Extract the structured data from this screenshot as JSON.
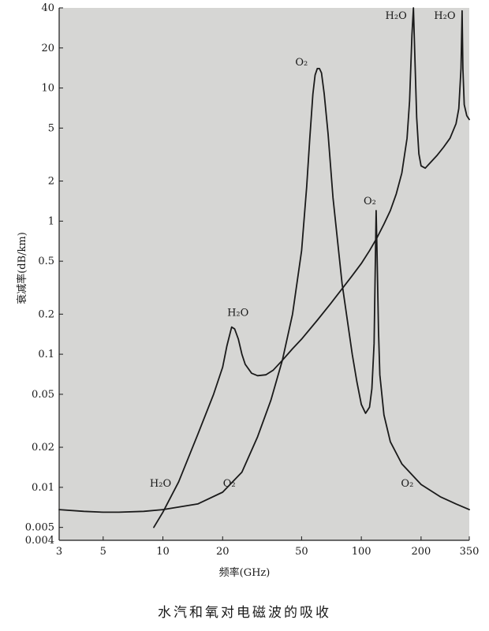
{
  "caption": "水汽和氧对电磁波的吸收",
  "chart_data": {
    "type": "line",
    "title": "",
    "xlabel": "频率(GHz)",
    "ylabel": "衰减率(dB/km)",
    "xscale": "log",
    "yscale": "log",
    "xlim": [
      3,
      350
    ],
    "ylim": [
      0.004,
      40
    ],
    "grid": false,
    "xticks": [
      {
        "value": 3,
        "label": "3"
      },
      {
        "value": 5,
        "label": "5"
      },
      {
        "value": 10,
        "label": "10"
      },
      {
        "value": 20,
        "label": "20"
      },
      {
        "value": 50,
        "label": "50"
      },
      {
        "value": 100,
        "label": "100"
      },
      {
        "value": 200,
        "label": "200"
      },
      {
        "value": 350,
        "label": "350"
      }
    ],
    "yticks": [
      {
        "value": 0.004,
        "label": "0.004"
      },
      {
        "value": 0.005,
        "label": "0.005"
      },
      {
        "value": 0.01,
        "label": "0.01"
      },
      {
        "value": 0.02,
        "label": "0.02"
      },
      {
        "value": 0.05,
        "label": "0.05"
      },
      {
        "value": 0.1,
        "label": "0.1"
      },
      {
        "value": 0.2,
        "label": "0.2"
      },
      {
        "value": 0.5,
        "label": "0.5"
      },
      {
        "value": 1,
        "label": "1"
      },
      {
        "value": 2,
        "label": "2"
      },
      {
        "value": 5,
        "label": "5"
      },
      {
        "value": 10,
        "label": "10"
      },
      {
        "value": 20,
        "label": "20"
      },
      {
        "value": 40,
        "label": "40"
      }
    ],
    "series": [
      {
        "name": "H2O",
        "x": [
          9,
          10,
          12,
          15,
          18,
          20,
          21,
          22.2,
          23,
          24,
          25,
          26,
          28,
          30,
          33,
          36,
          40,
          45,
          50,
          60,
          70,
          80,
          90,
          100,
          110,
          120,
          130,
          140,
          150,
          160,
          170,
          175,
          180,
          183,
          186,
          190,
          195,
          200,
          210,
          220,
          240,
          260,
          280,
          300,
          310,
          318,
          322,
          325,
          330,
          340,
          350
        ],
        "y": [
          0.005,
          0.0065,
          0.011,
          0.025,
          0.05,
          0.08,
          0.115,
          0.16,
          0.155,
          0.13,
          0.1,
          0.084,
          0.072,
          0.069,
          0.07,
          0.076,
          0.09,
          0.11,
          0.13,
          0.18,
          0.24,
          0.31,
          0.39,
          0.48,
          0.6,
          0.75,
          0.95,
          1.2,
          1.6,
          2.3,
          4.2,
          8,
          25,
          40,
          18,
          6,
          3.2,
          2.6,
          2.5,
          2.7,
          3.1,
          3.6,
          4.2,
          5.4,
          7,
          14,
          38,
          14,
          7.5,
          6.2,
          5.8
        ]
      },
      {
        "name": "O2",
        "x": [
          3,
          4,
          5,
          6,
          8,
          10,
          15,
          20,
          25,
          30,
          35,
          40,
          45,
          50,
          53,
          55,
          57,
          58.5,
          60,
          61.5,
          63,
          65,
          68,
          72,
          80,
          90,
          95,
          100,
          105,
          110,
          113,
          116,
          118.75,
          120,
          122,
          124,
          130,
          140,
          160,
          200,
          250,
          300,
          350
        ],
        "y": [
          0.0068,
          0.0066,
          0.0065,
          0.0065,
          0.0066,
          0.0068,
          0.0075,
          0.0092,
          0.013,
          0.024,
          0.045,
          0.09,
          0.2,
          0.6,
          1.8,
          4.2,
          9,
          12.5,
          14,
          14,
          13,
          9,
          4.5,
          1.5,
          0.34,
          0.1,
          0.062,
          0.042,
          0.036,
          0.04,
          0.055,
          0.12,
          1.2,
          0.6,
          0.15,
          0.07,
          0.035,
          0.022,
          0.015,
          0.0105,
          0.0085,
          0.0075,
          0.0068
        ]
      }
    ],
    "annotations": [
      {
        "label": "H₂O",
        "x": 183,
        "y": 40
      },
      {
        "label": "H₂O",
        "x": 322,
        "y": 40
      },
      {
        "label": "O₂",
        "x": 60,
        "y": 14
      },
      {
        "label": "O₂",
        "x": 118.75,
        "y": 1.3
      },
      {
        "label": "H₂O",
        "x": 22.2,
        "y": 0.16
      },
      {
        "label": "H₂O",
        "x": 10,
        "y": 0.011
      },
      {
        "label": "O₂",
        "x": 22,
        "y": 0.011
      },
      {
        "label": "O₂",
        "x": 180,
        "y": 0.011
      }
    ]
  }
}
